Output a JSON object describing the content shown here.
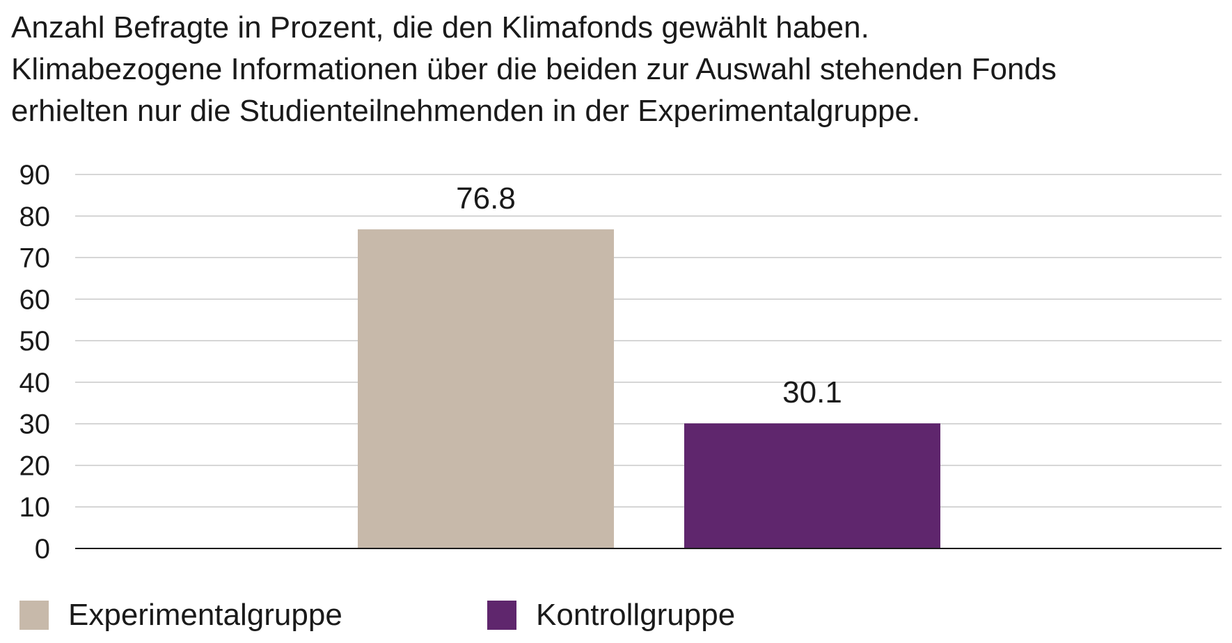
{
  "caption": {
    "lines": [
      "Anzahl Befragte in Prozent, die den Klimafonds gewählt haben.",
      "Klimabezogene Informationen über die beiden zur Auswahl stehenden Fonds",
      "erhielten nur die Studienteilnehmenden in der Experimentalgruppe."
    ]
  },
  "legend": {
    "items": [
      {
        "label": "Experimentalgruppe",
        "color": "#c7b9aa"
      },
      {
        "label": "Kontrollgruppe",
        "color": "#5f266d"
      }
    ]
  },
  "chart_data": {
    "type": "bar",
    "title": "Anzahl Befragte in Prozent, die den Klimafonds gewählt haben.",
    "categories": [
      "Experimentalgruppe",
      "Kontrollgruppe"
    ],
    "values": [
      76.8,
      30.1
    ],
    "value_labels": [
      "76.8",
      "30.1"
    ],
    "colors": [
      "#c7b9aa",
      "#5f266d"
    ],
    "xlabel": "",
    "ylabel": "",
    "ylim": [
      0,
      90
    ],
    "yticks": [
      0,
      10,
      20,
      30,
      40,
      50,
      60,
      70,
      80,
      90
    ],
    "grid": true,
    "legend_position": "bottom"
  }
}
